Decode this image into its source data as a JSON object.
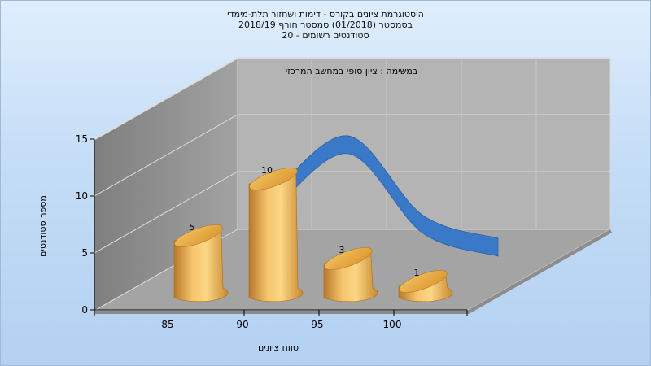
{
  "title_lines": [
    "היסטוגרמת ציונים בקורס - דימות ושחזור תלת-מימדי",
    "בסמסטר  (01/2018)  סמסטר חורף 2018/19",
    "סטודנטים רשומים - 20"
  ],
  "chart_data": {
    "type": "bar",
    "title": "היסטוגרמת ציונים בקורס - דימות ושחזור תלת-מימדי",
    "annotation": "במשימה : ציון סופי במחשב המרכזי",
    "xlabel": "טווח ציונים",
    "ylabel": "מספר סטודנטים",
    "categories": [
      "85",
      "90",
      "95",
      "100"
    ],
    "values": [
      5,
      10,
      3,
      1
    ],
    "ylim": [
      0,
      15
    ],
    "y_ticks": [
      0,
      5,
      10,
      15
    ],
    "grid": true,
    "style": "3d-cylinders-with-smoothed-ribbon",
    "colors": {
      "bar": "#e8a848",
      "bar_highlight": "#fbd684",
      "bar_shadow": "#b8782a",
      "ribbon": "#3a78c8",
      "back_wall": "#b4b4b4",
      "side_wall": "#8e8e8e",
      "floor": "#a0a0a0"
    }
  }
}
